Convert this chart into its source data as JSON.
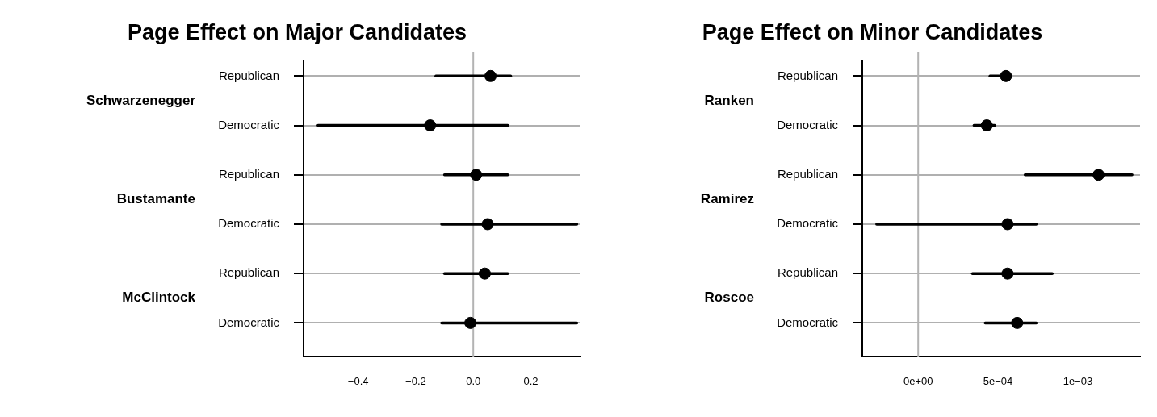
{
  "chart_data": [
    {
      "type": "scatter",
      "orientation": "horizontal",
      "title": "Page Effect on Major Candidates",
      "marker": "circle",
      "grid": "y",
      "categories": [
        "Republican",
        "Democratic",
        "Republican",
        "Democratic",
        "Republican",
        "Democratic"
      ],
      "annotations": [
        "Schwarzenegger",
        "Bustamante",
        "McClintock"
      ],
      "values": [
        0.06,
        -0.15,
        0.01,
        0.05,
        0.04,
        -0.01
      ],
      "errors": [
        [
          -0.13,
          0.13
        ],
        [
          -0.54,
          0.12
        ],
        [
          -0.1,
          0.12
        ],
        [
          -0.11,
          0.36
        ],
        [
          -0.1,
          0.12
        ],
        [
          -0.11,
          0.36
        ]
      ],
      "color": "#000000",
      "xlim": [
        -0.59,
        0.37
      ],
      "xticks": [
        {
          "value": -0.4,
          "label": "−0.4"
        },
        {
          "value": -0.2,
          "label": "−0.2"
        },
        {
          "value": 0,
          "label": "0.0"
        },
        0.2
      ],
      "ref_lines": [
        {
          "axis": "x",
          "value": 0,
          "color": "#b3b3b3"
        }
      ]
    },
    {
      "type": "scatter",
      "orientation": "horizontal",
      "title": "Page Effect on Minor Candidates",
      "marker": "circle",
      "grid": "y",
      "categories": [
        "Republican",
        "Democratic",
        "Republican",
        "Democratic",
        "Republican",
        "Democratic"
      ],
      "annotations": [
        "Ranken",
        "Ramirez",
        "Roscoe"
      ],
      "values": [
        0.00055,
        0.00043,
        0.00113,
        0.00056,
        0.00056,
        0.00062
      ],
      "errors": [
        [
          0.00045,
          0.00058
        ],
        [
          0.00035,
          0.00048
        ],
        [
          0.00067,
          0.00134
        ],
        [
          -0.00026,
          0.00074
        ],
        [
          0.00034,
          0.00084
        ],
        [
          0.00042,
          0.00074
        ]
      ],
      "color": "#000000",
      "xlim": [
        -0.00035,
        0.00139
      ],
      "xticks": [
        {
          "value": 0,
          "label": "0e+00"
        },
        {
          "value": 0.0005,
          "label": "5e−04"
        },
        {
          "value": 0.001,
          "label": "1e−03"
        }
      ],
      "ref_lines": [
        {
          "axis": "x",
          "value": 0,
          "color": "#b3b3b3"
        }
      ]
    }
  ]
}
